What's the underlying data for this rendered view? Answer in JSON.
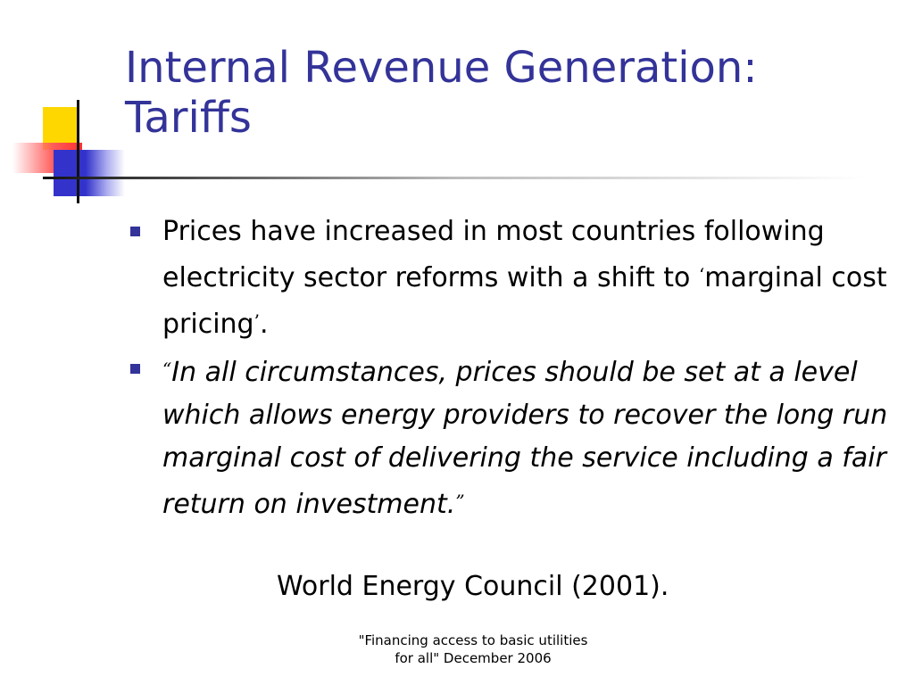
{
  "slide": {
    "title_lines": [
      "Internal Revenue Generation:",
      "Tariffs"
    ],
    "bullets": [
      {
        "pre": "Prices have increased in most countries following electricity sector reforms with a shift to ",
        "open_quote": "‘",
        "quoted": "marginal cost pricing",
        "close_quote": "’",
        "post": "."
      },
      {
        "open_quote": "“",
        "text": "In all circumstances, prices should be set at a level which allows energy providers to recover the long run marginal cost of delivering the service including a fair return on investment.",
        "close_quote": "”"
      }
    ],
    "attribution": "World Energy Council (2001).",
    "footer_lines": [
      "\"Financing access to basic utilities",
      "for all\" December 2006"
    ]
  },
  "colors": {
    "title": "#333399",
    "bullet_marker": "#333399",
    "deco_yellow": "#ffd700",
    "deco_red": "#ff3030",
    "deco_blue": "#3333cc"
  }
}
